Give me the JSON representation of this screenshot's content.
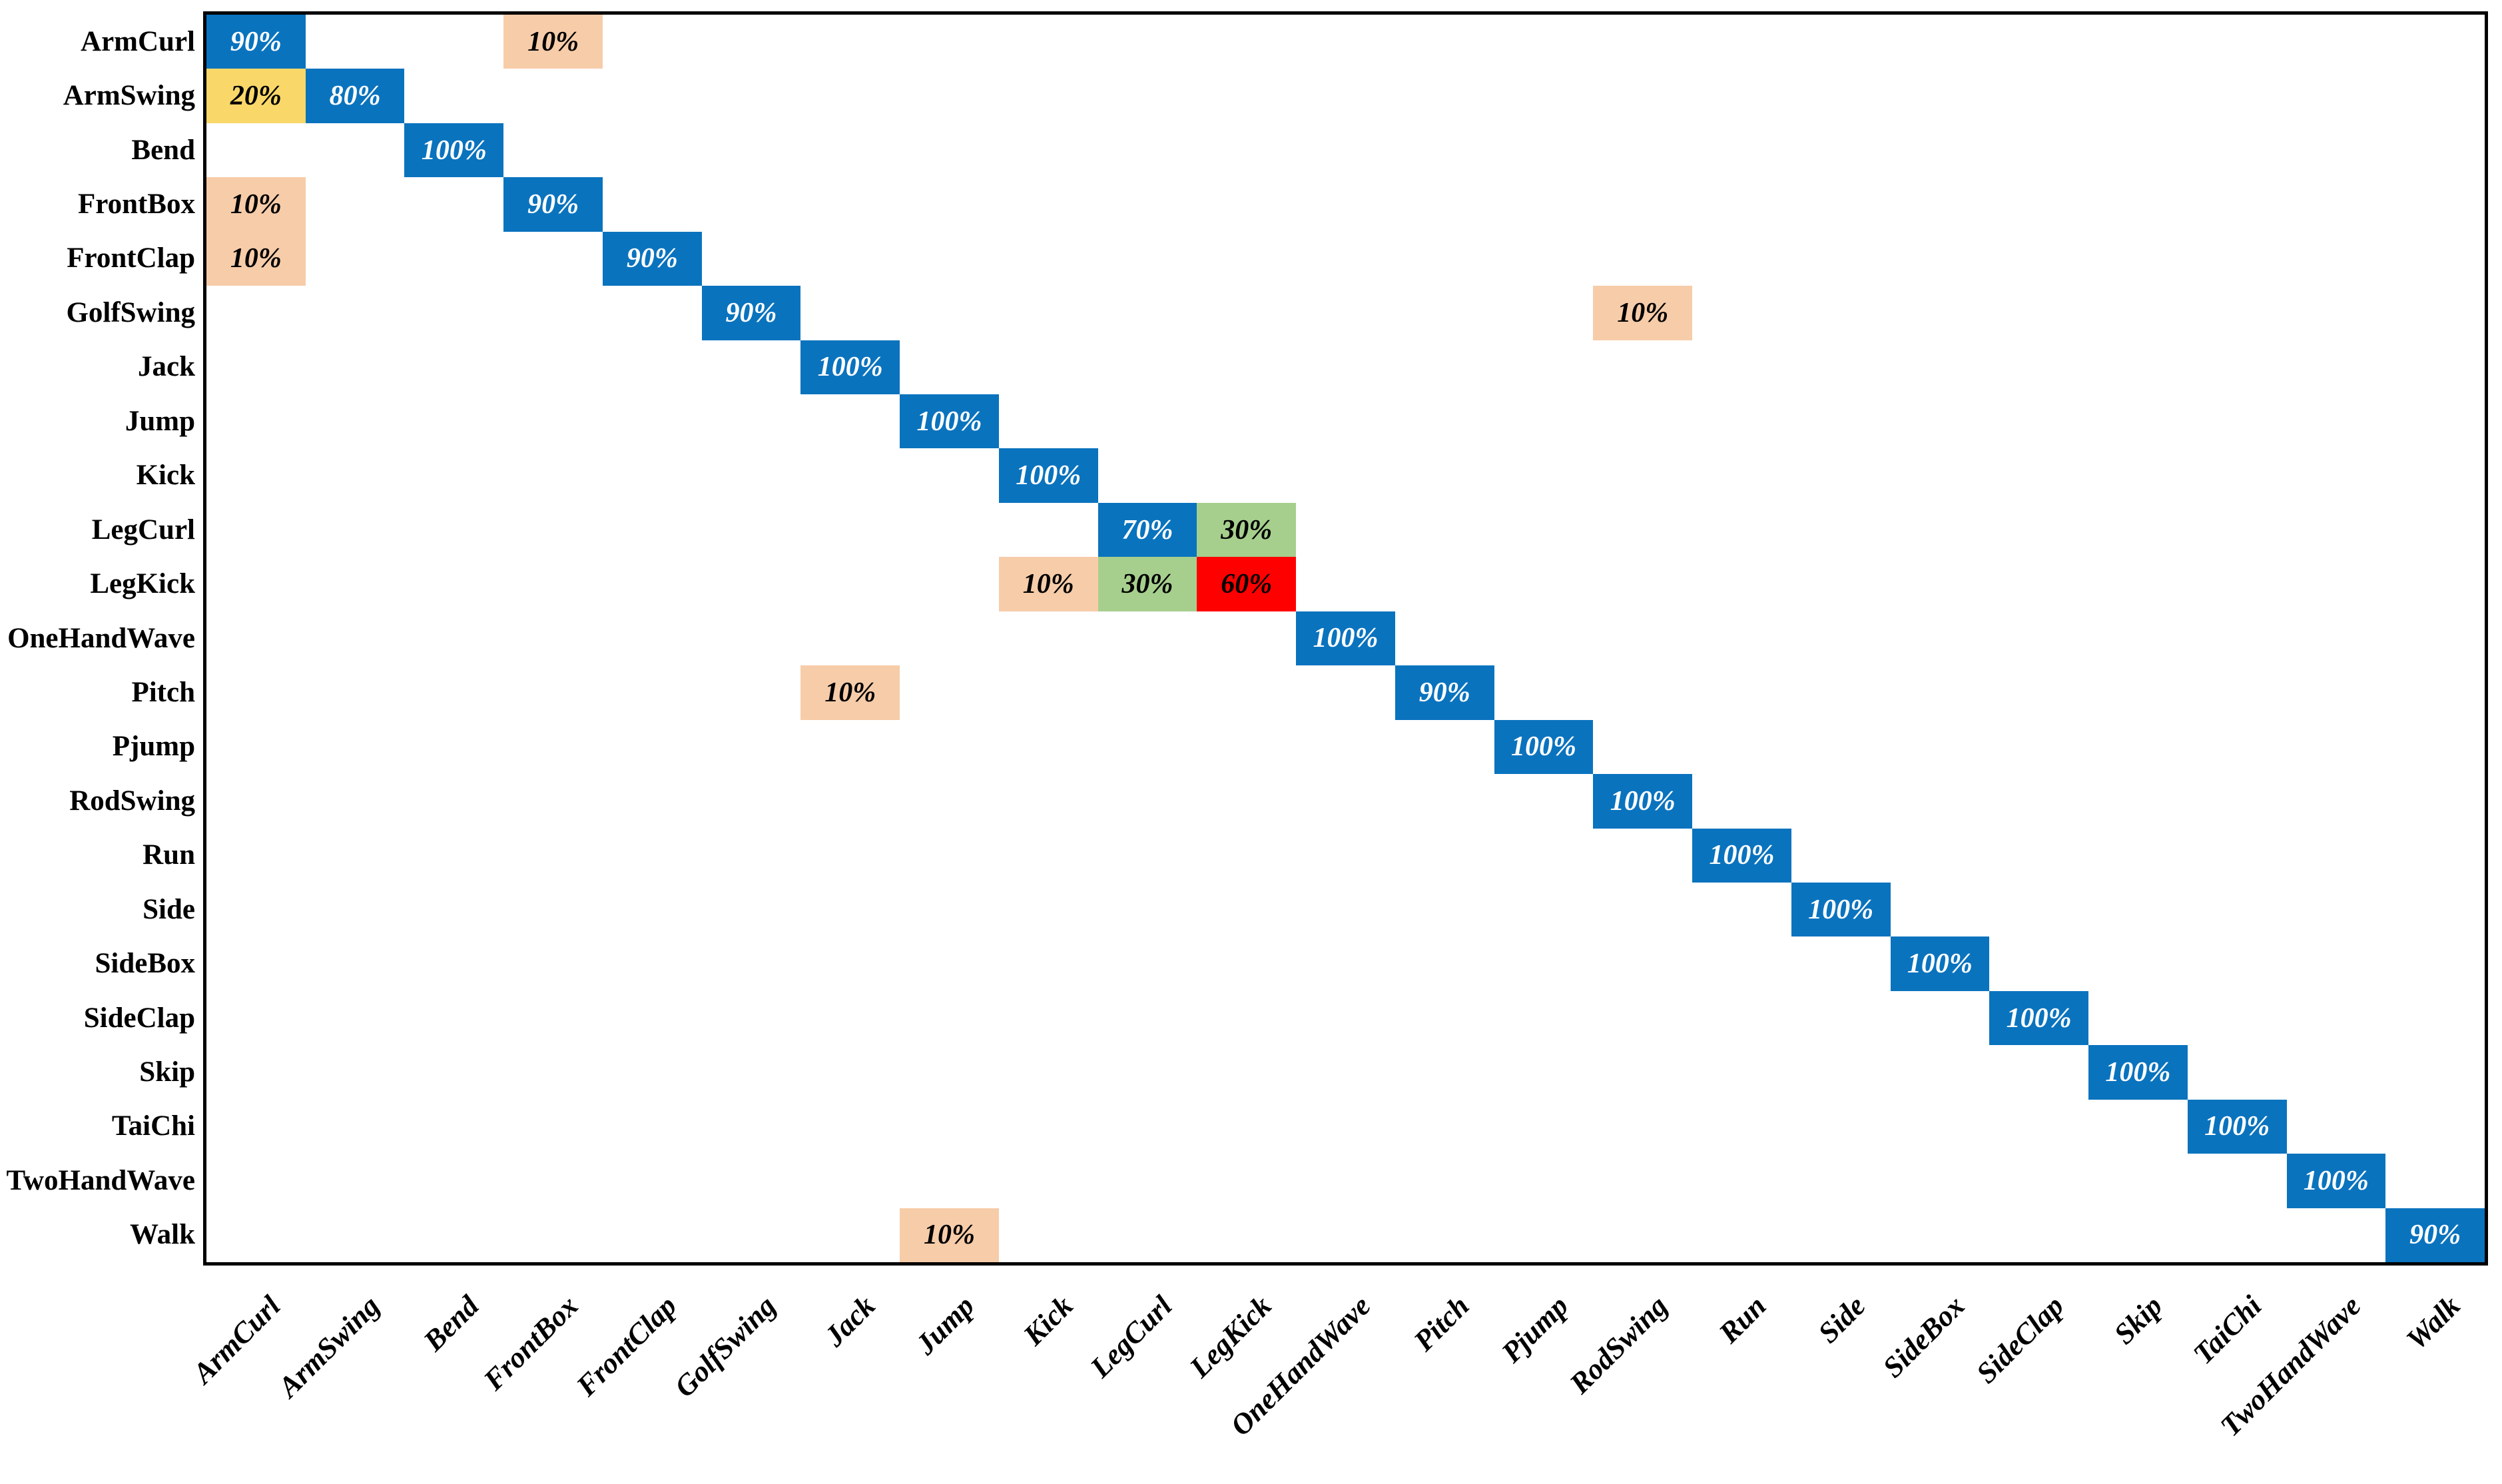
{
  "chart_data": {
    "type": "heatmap",
    "subtype": "confusion-matrix",
    "title": "",
    "xlabel": "",
    "ylabel": "",
    "grid": false,
    "cell_unit": "%",
    "classes": [
      "ArmCurl",
      "ArmSwing",
      "Bend",
      "FrontBox",
      "FrontClap",
      "GolfSwing",
      "Jack",
      "Jump",
      "Kick",
      "LegCurl",
      "LegKick",
      "OneHandWave",
      "Pitch",
      "Pjump",
      "RodSwing",
      "Run",
      "Side",
      "SideBox",
      "SideClap",
      "Skip",
      "TaiChi",
      "TwoHandWave",
      "Walk"
    ],
    "palette": {
      "blue": "#0a73be",
      "yellow": "#f9d869",
      "peach": "#f7cca9",
      "green": "#a6cf8d",
      "red": "#fe0000"
    },
    "text_colors": {
      "blue": "#ffffff",
      "yellow": "#000000",
      "peach": "#000000",
      "green": "#000000",
      "red": "#000000"
    },
    "axis_color": "#000000",
    "background_color": "#ffffff",
    "cells": [
      {
        "row": "ArmCurl",
        "col": "ArmCurl",
        "value": 90,
        "label": "90%",
        "color": "blue"
      },
      {
        "row": "ArmCurl",
        "col": "FrontBox",
        "value": 10,
        "label": "10%",
        "color": "peach"
      },
      {
        "row": "ArmSwing",
        "col": "ArmCurl",
        "value": 20,
        "label": "20%",
        "color": "yellow"
      },
      {
        "row": "ArmSwing",
        "col": "ArmSwing",
        "value": 80,
        "label": "80%",
        "color": "blue"
      },
      {
        "row": "Bend",
        "col": "Bend",
        "value": 100,
        "label": "100%",
        "color": "blue"
      },
      {
        "row": "FrontBox",
        "col": "ArmCurl",
        "value": 10,
        "label": "10%",
        "color": "peach"
      },
      {
        "row": "FrontBox",
        "col": "FrontBox",
        "value": 90,
        "label": "90%",
        "color": "blue"
      },
      {
        "row": "FrontClap",
        "col": "ArmCurl",
        "value": 10,
        "label": "10%",
        "color": "peach"
      },
      {
        "row": "FrontClap",
        "col": "FrontClap",
        "value": 90,
        "label": "90%",
        "color": "blue"
      },
      {
        "row": "GolfSwing",
        "col": "GolfSwing",
        "value": 90,
        "label": "90%",
        "color": "blue"
      },
      {
        "row": "GolfSwing",
        "col": "RodSwing",
        "value": 10,
        "label": "10%",
        "color": "peach"
      },
      {
        "row": "Jack",
        "col": "Jack",
        "value": 100,
        "label": "100%",
        "color": "blue"
      },
      {
        "row": "Jump",
        "col": "Jump",
        "value": 100,
        "label": "100%",
        "color": "blue"
      },
      {
        "row": "Kick",
        "col": "Kick",
        "value": 100,
        "label": "100%",
        "color": "blue"
      },
      {
        "row": "LegCurl",
        "col": "LegCurl",
        "value": 70,
        "label": "70%",
        "color": "blue"
      },
      {
        "row": "LegCurl",
        "col": "LegKick",
        "value": 30,
        "label": "30%",
        "color": "green"
      },
      {
        "row": "LegKick",
        "col": "Kick",
        "value": 10,
        "label": "10%",
        "color": "peach"
      },
      {
        "row": "LegKick",
        "col": "LegCurl",
        "value": 30,
        "label": "30%",
        "color": "green"
      },
      {
        "row": "LegKick",
        "col": "LegKick",
        "value": 60,
        "label": "60%",
        "color": "red"
      },
      {
        "row": "OneHandWave",
        "col": "OneHandWave",
        "value": 100,
        "label": "100%",
        "color": "blue"
      },
      {
        "row": "Pitch",
        "col": "Jack",
        "value": 10,
        "label": "10%",
        "color": "peach"
      },
      {
        "row": "Pitch",
        "col": "Pitch",
        "value": 90,
        "label": "90%",
        "color": "blue"
      },
      {
        "row": "Pjump",
        "col": "Pjump",
        "value": 100,
        "label": "100%",
        "color": "blue"
      },
      {
        "row": "RodSwing",
        "col": "RodSwing",
        "value": 100,
        "label": "100%",
        "color": "blue"
      },
      {
        "row": "Run",
        "col": "Run",
        "value": 100,
        "label": "100%",
        "color": "blue"
      },
      {
        "row": "Side",
        "col": "Side",
        "value": 100,
        "label": "100%",
        "color": "blue"
      },
      {
        "row": "SideBox",
        "col": "SideBox",
        "value": 100,
        "label": "100%",
        "color": "blue"
      },
      {
        "row": "SideClap",
        "col": "SideClap",
        "value": 100,
        "label": "100%",
        "color": "blue"
      },
      {
        "row": "Skip",
        "col": "Skip",
        "value": 100,
        "label": "100%",
        "color": "blue"
      },
      {
        "row": "TaiChi",
        "col": "TaiChi",
        "value": 100,
        "label": "100%",
        "color": "blue"
      },
      {
        "row": "TwoHandWave",
        "col": "TwoHandWave",
        "value": 100,
        "label": "100%",
        "color": "blue"
      },
      {
        "row": "Walk",
        "col": "Jump",
        "value": 10,
        "label": "10%",
        "color": "peach"
      },
      {
        "row": "Walk",
        "col": "Walk",
        "value": 90,
        "label": "90%",
        "color": "blue"
      }
    ]
  }
}
